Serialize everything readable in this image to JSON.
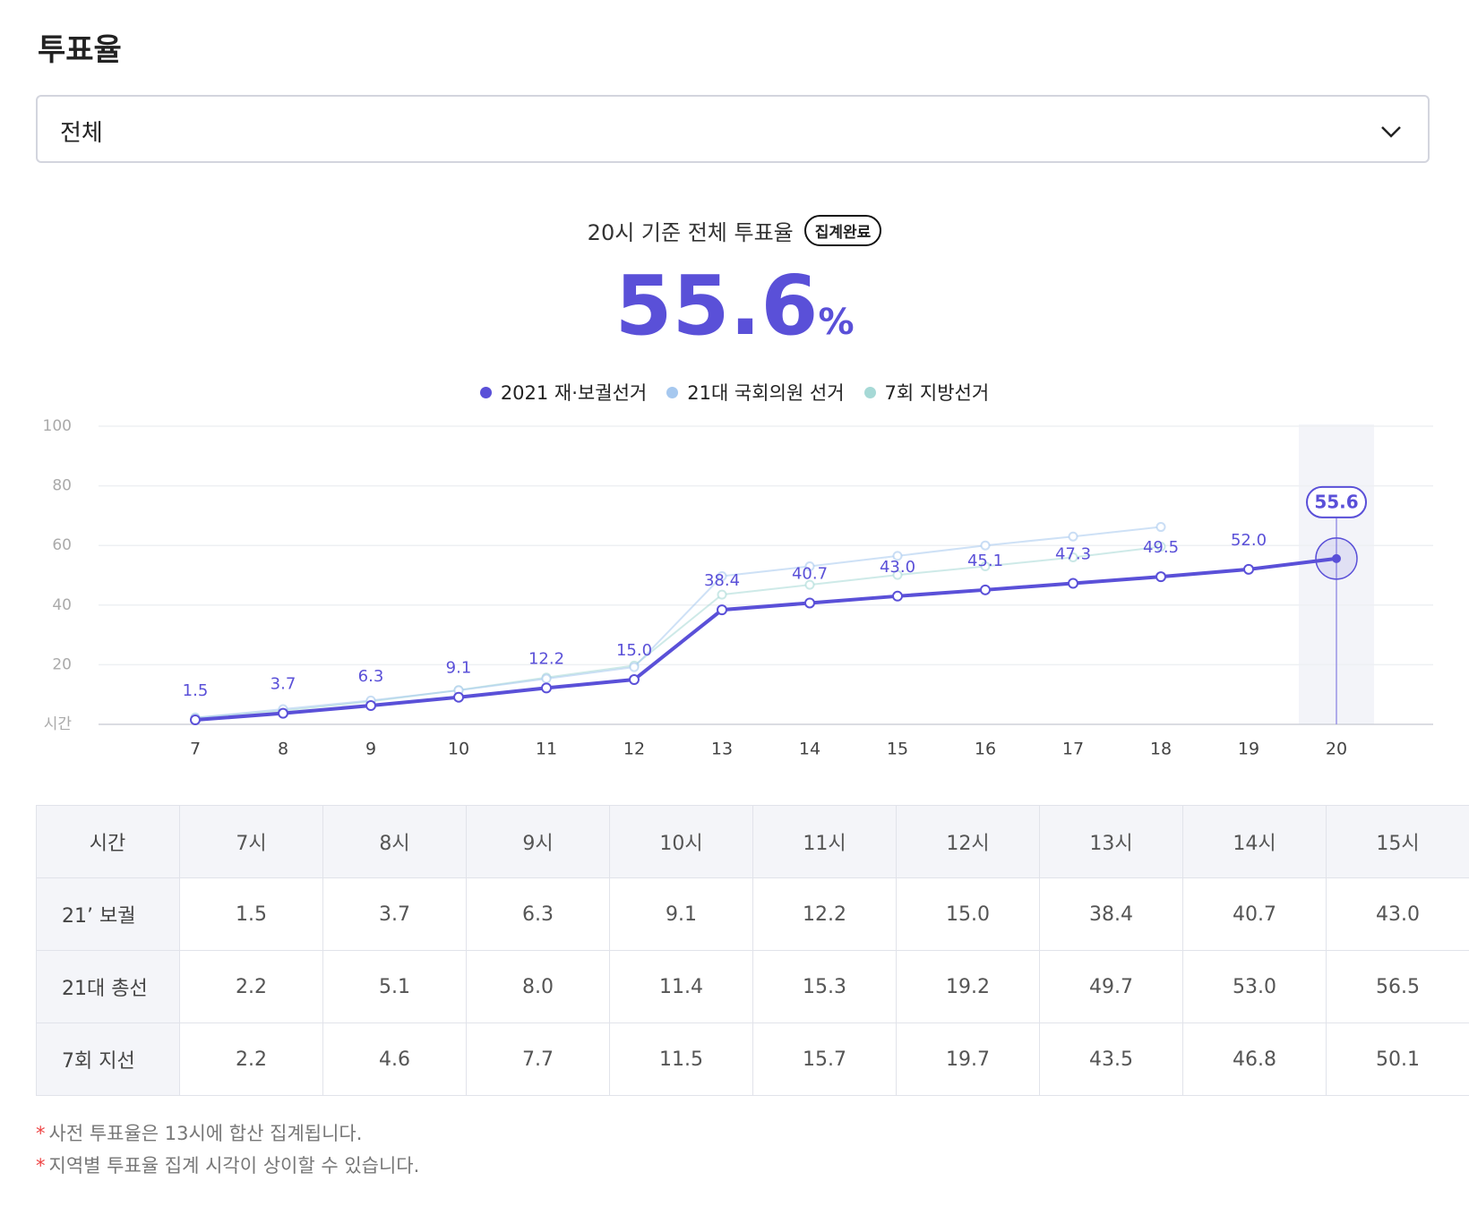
{
  "header": {
    "title": "투표율",
    "dropdown": "전체"
  },
  "summary": {
    "caption": "20시 기준 전체 투표율",
    "badge": "집계완료",
    "value": "55.6",
    "unit": "%"
  },
  "chart_data": {
    "type": "line",
    "categories": [
      7,
      8,
      9,
      10,
      11,
      12,
      13,
      14,
      15,
      16,
      17,
      18,
      19,
      20
    ],
    "series": [
      {
        "name": "2021 재·보궐선거",
        "color": "#5a50d8",
        "values": [
          1.5,
          3.7,
          6.3,
          9.1,
          12.2,
          15.0,
          38.4,
          40.7,
          43.0,
          45.1,
          47.3,
          49.5,
          52.0,
          55.6
        ],
        "value_labels": [
          "1.5",
          "3.7",
          "6.3",
          "9.1",
          "12.2",
          "15.0",
          "38.4",
          "40.7",
          "43.0",
          "45.1",
          "47.3",
          "49.5",
          "52.0",
          "55.6"
        ]
      },
      {
        "name": "21대 국회의원 선거",
        "color": "#a6c8ef",
        "values": [
          2.2,
          5.1,
          8.0,
          11.4,
          15.3,
          19.2,
          49.7,
          53.0,
          56.5,
          60.0,
          63.0,
          66.2,
          null,
          null
        ]
      },
      {
        "name": "7회 지방선거",
        "color": "#a6d9d6",
        "values": [
          2.2,
          4.6,
          7.7,
          11.5,
          15.7,
          19.7,
          43.5,
          46.8,
          50.1,
          53.0,
          56.0,
          59.6,
          null,
          null
        ]
      }
    ],
    "ylim": [
      0,
      100
    ],
    "yticks": [
      {
        "value": 0,
        "label": "시간"
      },
      20,
      40,
      60,
      80,
      100
    ],
    "grid": true,
    "legend": "top"
  },
  "table": {
    "header": [
      "시간",
      "7시",
      "8시",
      "9시",
      "10시",
      "11시",
      "12시",
      "13시",
      "14시",
      "15시"
    ],
    "rows": [
      [
        "21’ 보궐",
        "1.5",
        "3.7",
        "6.3",
        "9.1",
        "12.2",
        "15.0",
        "38.4",
        "40.7",
        "43.0"
      ],
      [
        "21대 총선",
        "2.2",
        "5.1",
        "8.0",
        "11.4",
        "15.3",
        "19.2",
        "49.7",
        "53.0",
        "56.5"
      ],
      [
        "7회 지선",
        "2.2",
        "4.6",
        "7.7",
        "11.5",
        "15.7",
        "19.7",
        "43.5",
        "46.8",
        "50.1"
      ]
    ]
  },
  "notes": {
    "marker": "*",
    "items": [
      "사전 투표율은 13시에 합산 집계됩니다.",
      "지역별 투표율 집계 시각이 상이할 수 있습니다."
    ]
  }
}
